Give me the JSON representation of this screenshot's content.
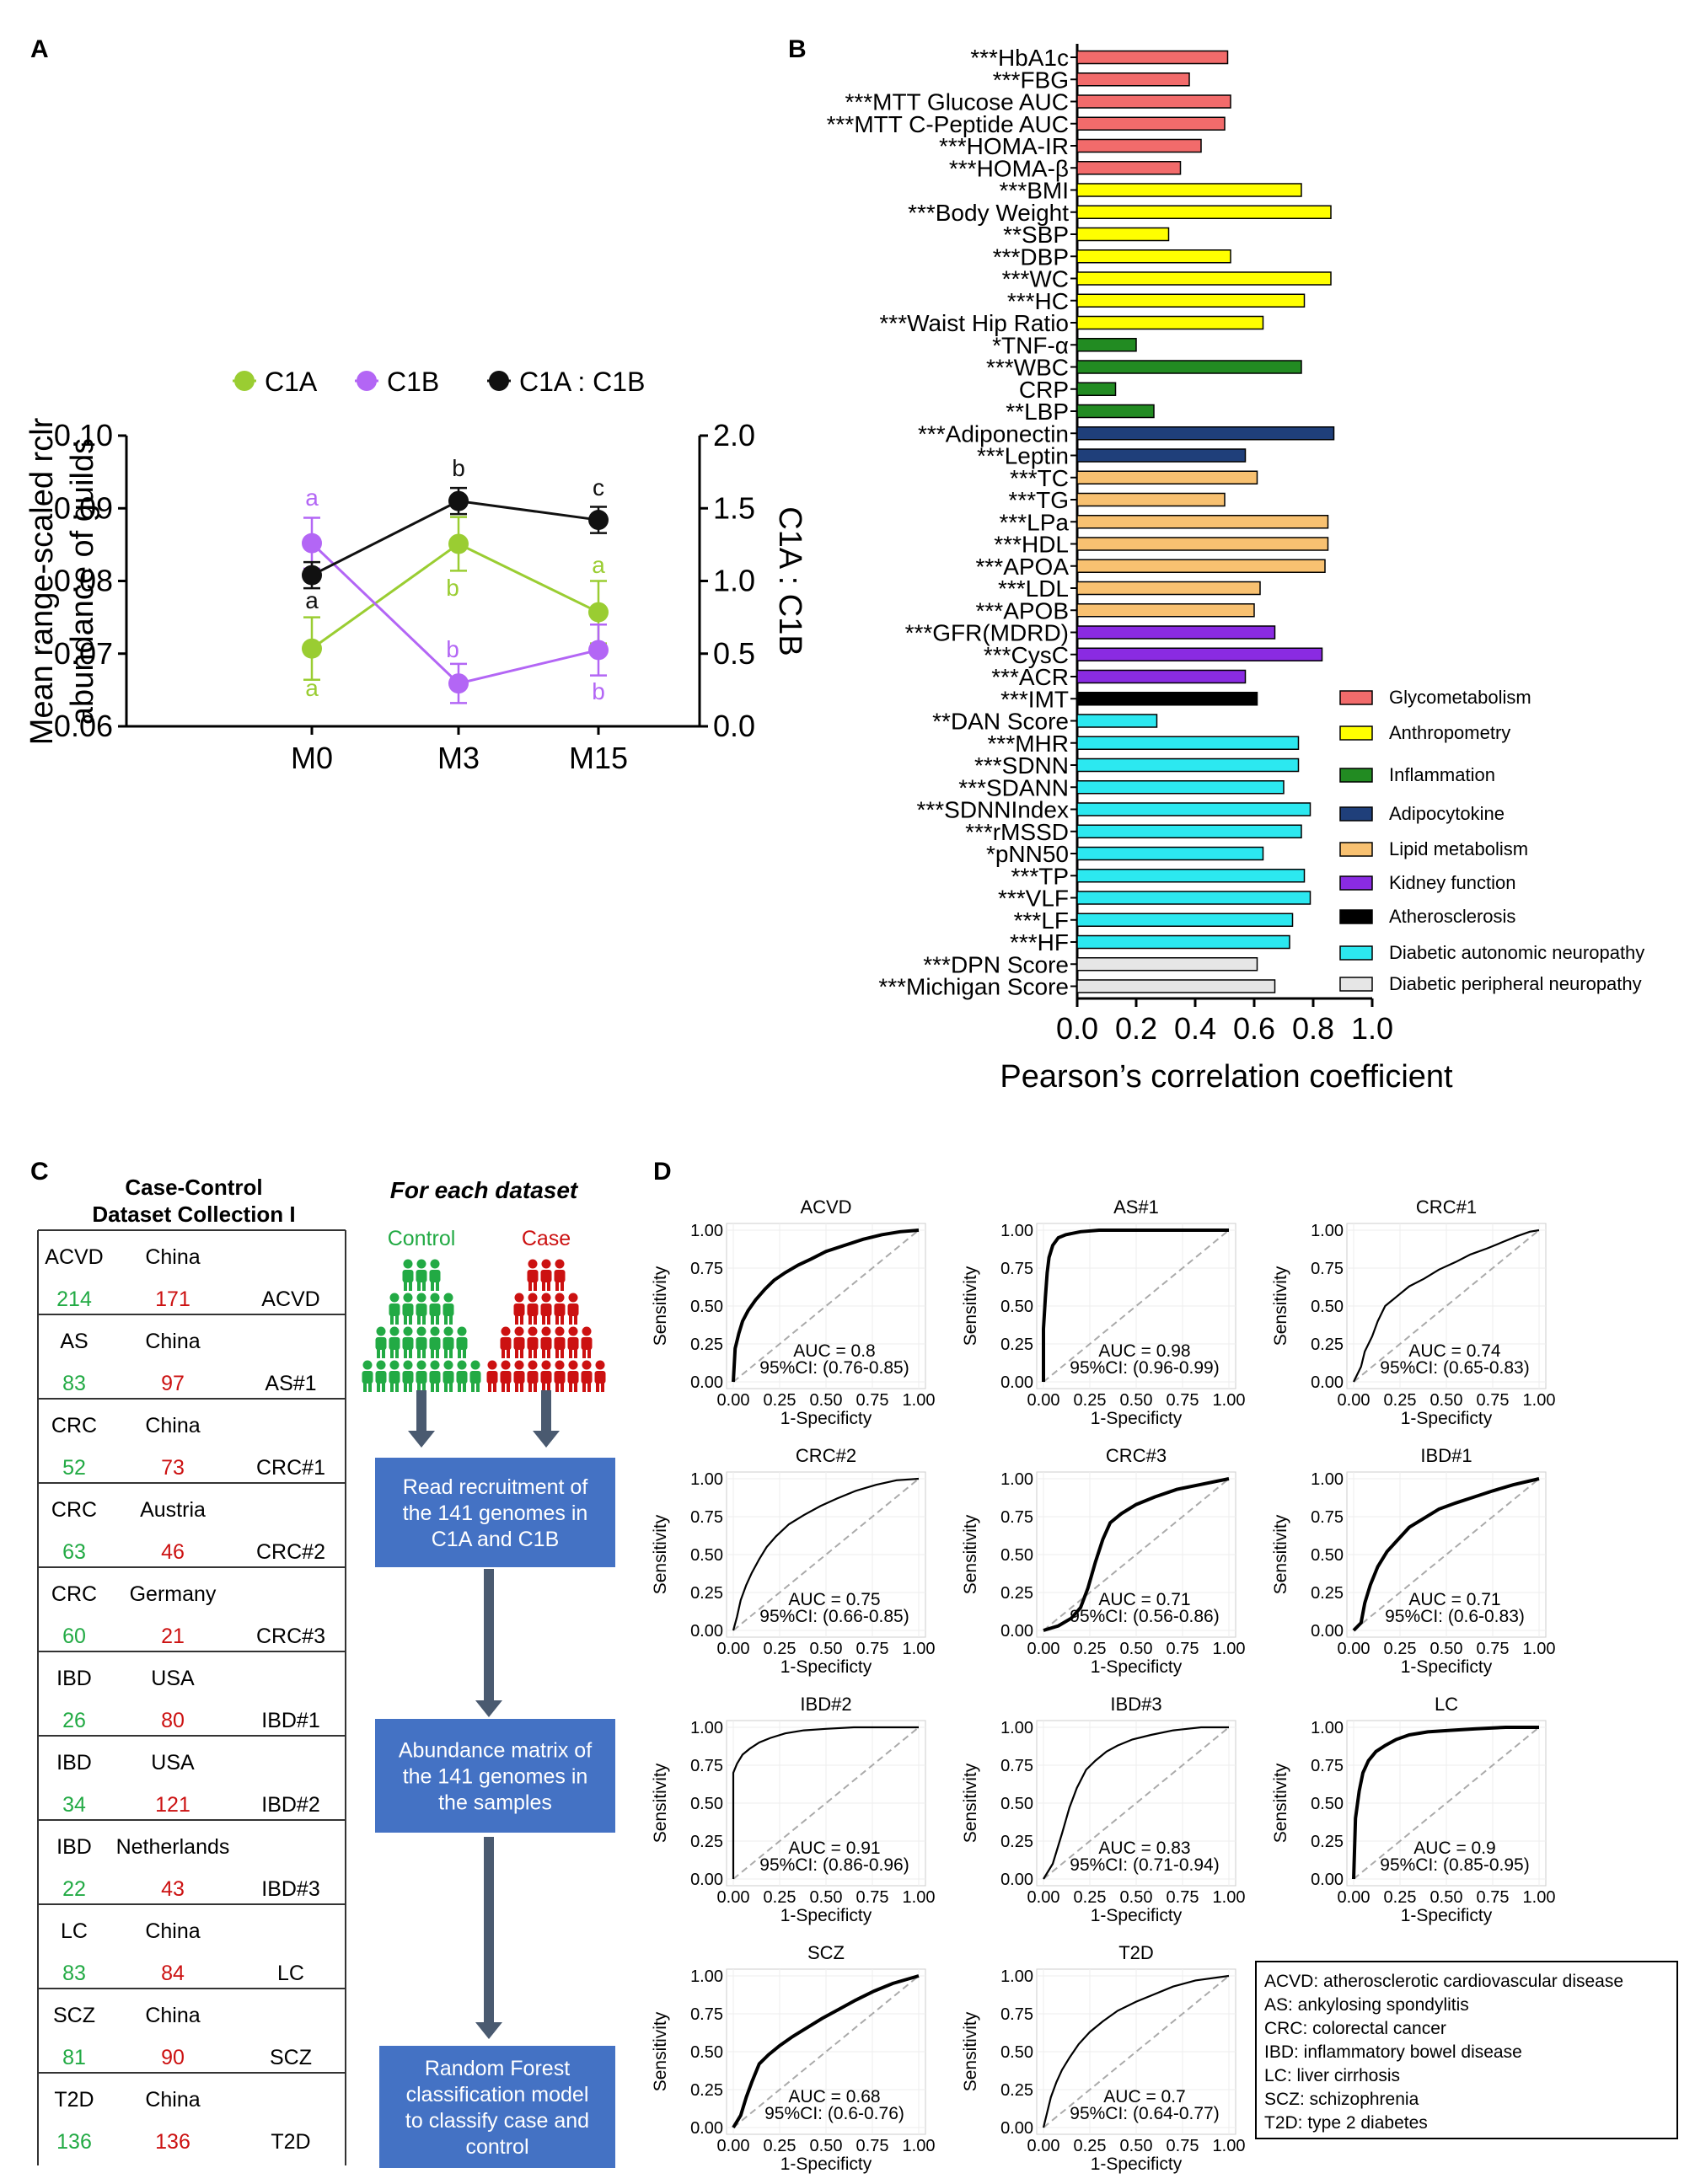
{
  "colors": {
    "c1a": "#9acd32",
    "c1b": "#b366f5",
    "ratio": "#111111",
    "control": "#22aa44",
    "case": "#cc1111",
    "flowbox": "#4472c4",
    "arrow": "#4a5a70",
    "diag": "#aaaaaa"
  },
  "panelA": {
    "panel_label": "A",
    "legend": [
      "C1A",
      "C1B",
      "C1A : C1B"
    ],
    "ylabel_line1": "Mean range-scaled rclr",
    "ylabel_line2": "abundance of guilds",
    "y2label": "C1A : C1B",
    "yticks": [
      "0.06",
      "0.07",
      "0.08",
      "0.09",
      "0.10"
    ],
    "y2ticks": [
      "0.0",
      "0.5",
      "1.0",
      "1.5",
      "2.0"
    ],
    "letters": {
      "c1a": [
        "a",
        "b",
        "a"
      ],
      "c1b": [
        "a",
        "b",
        "b"
      ],
      "ratio": [
        "a",
        "b",
        "c"
      ]
    }
  },
  "panelB": {
    "panel_label": "B",
    "xlabel": "Pearson’s correlation coefficient",
    "xticks": [
      "0.0",
      "0.2",
      "0.4",
      "0.6",
      "0.8",
      "1.0"
    ],
    "categories": [
      {
        "name": "Glycometabolism",
        "color": "#f26b6b"
      },
      {
        "name": "Anthropometry",
        "color": "#ffff00"
      },
      {
        "name": "Inflammation",
        "color": "#228b22"
      },
      {
        "name": "Adipocytokine",
        "color": "#1f3f7a"
      },
      {
        "name": "Lipid metabolism",
        "color": "#f8c171"
      },
      {
        "name": "Kidney function",
        "color": "#8a2be2"
      },
      {
        "name": "Atherosclerosis",
        "color": "#000000"
      },
      {
        "name": "Diabetic autonomic neuropathy",
        "color": "#2ce8f0"
      },
      {
        "name": "Diabetic peripheral neuropathy",
        "color": "#e6e6e6"
      }
    ]
  },
  "panelC": {
    "panel_label": "C",
    "title_line1": "Case-Control",
    "title_line2": "Dataset Collection I",
    "flow_title": "For each dataset",
    "control_label": "Control",
    "case_label": "Case",
    "rows": [
      {
        "disease": "ACVD",
        "country": "China",
        "control": "214",
        "case": "171",
        "dataset": "ACVD"
      },
      {
        "disease": "AS",
        "country": "China",
        "control": "83",
        "case": "97",
        "dataset": "AS#1"
      },
      {
        "disease": "CRC",
        "country": "China",
        "control": "52",
        "case": "73",
        "dataset": "CRC#1"
      },
      {
        "disease": "CRC",
        "country": "Austria",
        "control": "63",
        "case": "46",
        "dataset": "CRC#2"
      },
      {
        "disease": "CRC",
        "country": "Germany",
        "control": "60",
        "case": "21",
        "dataset": "CRC#3"
      },
      {
        "disease": "IBD",
        "country": "USA",
        "control": "26",
        "case": "80",
        "dataset": "IBD#1"
      },
      {
        "disease": "IBD",
        "country": "USA",
        "control": "34",
        "case": "121",
        "dataset": "IBD#2"
      },
      {
        "disease": "IBD",
        "country": "Netherlands",
        "control": "22",
        "case": "43",
        "dataset": "IBD#3"
      },
      {
        "disease": "LC",
        "country": "China",
        "control": "83",
        "case": "84",
        "dataset": "LC"
      },
      {
        "disease": "SCZ",
        "country": "China",
        "control": "81",
        "case": "90",
        "dataset": "SCZ"
      },
      {
        "disease": "T2D",
        "country": "China",
        "control": "136",
        "case": "136",
        "dataset": "T2D"
      }
    ],
    "flow_boxes": [
      [
        "Read recruitment of",
        "the 141 genomes in",
        "C1A and C1B"
      ],
      [
        "Abundance matrix of",
        "the 141 genomes in",
        "the samples"
      ],
      [
        "Random Forest",
        "classification model",
        "to classify case and",
        "control"
      ]
    ]
  },
  "panelD": {
    "panel_label": "D",
    "xlabel": "1-Specificty",
    "ylabel": "Sensitivity",
    "ticks": [
      "0.00",
      "0.25",
      "0.50",
      "0.75",
      "1.00"
    ],
    "abbreviations": [
      "ACVD: atherosclerotic cardiovascular disease",
      "AS: ankylosing spondylitis",
      "CRC: colorectal cancer",
      "IBD: inflammatory bowel disease",
      "LC: liver cirrhosis",
      "SCZ: schizophrenia",
      "T2D: type 2 diabetes"
    ]
  },
  "chart_data": [
    {
      "type": "line",
      "panel": "A",
      "categories": [
        "M0",
        "M3",
        "M15"
      ],
      "ylim": [
        0.06,
        0.1
      ],
      "y2lim": [
        0.0,
        2.0
      ],
      "series": [
        {
          "name": "C1A",
          "axis": "left",
          "values": [
            0.0707,
            0.0851,
            0.0757
          ],
          "err": [
            0.0043,
            0.0037,
            0.0043
          ]
        },
        {
          "name": "C1B",
          "axis": "left",
          "values": [
            0.0852,
            0.0659,
            0.0705
          ],
          "err": [
            0.0035,
            0.0027,
            0.0035
          ]
        },
        {
          "name": "C1A : C1B",
          "axis": "right",
          "values": [
            1.04,
            1.55,
            1.42
          ],
          "err": [
            0.09,
            0.09,
            0.09
          ]
        }
      ]
    },
    {
      "type": "bar",
      "panel": "B",
      "orientation": "horizontal",
      "xlim": [
        0.0,
        1.0
      ],
      "xlabel": "Pearson’s correlation coefficient",
      "bars": [
        {
          "label": "***HbA1c",
          "value": 0.51,
          "cat": 0
        },
        {
          "label": "***FBG",
          "value": 0.38,
          "cat": 0
        },
        {
          "label": "***MTT Glucose AUC",
          "value": 0.52,
          "cat": 0
        },
        {
          "label": "***MTT C-Peptide AUC",
          "value": 0.5,
          "cat": 0
        },
        {
          "label": "***HOMA-IR",
          "value": 0.42,
          "cat": 0
        },
        {
          "label": "***HOMA-β",
          "value": 0.35,
          "cat": 0
        },
        {
          "label": "***BMI",
          "value": 0.76,
          "cat": 1
        },
        {
          "label": "***Body Weight",
          "value": 0.86,
          "cat": 1
        },
        {
          "label": "**SBP",
          "value": 0.31,
          "cat": 1
        },
        {
          "label": "***DBP",
          "value": 0.52,
          "cat": 1
        },
        {
          "label": "***WC",
          "value": 0.86,
          "cat": 1
        },
        {
          "label": "***HC",
          "value": 0.77,
          "cat": 1
        },
        {
          "label": "***Waist Hip Ratio",
          "value": 0.63,
          "cat": 1
        },
        {
          "label": "*TNF-α",
          "value": 0.2,
          "cat": 2
        },
        {
          "label": "***WBC",
          "value": 0.76,
          "cat": 2
        },
        {
          "label": "CRP",
          "value": 0.13,
          "cat": 2
        },
        {
          "label": "**LBP",
          "value": 0.26,
          "cat": 2
        },
        {
          "label": "***Adiponectin",
          "value": 0.87,
          "cat": 3
        },
        {
          "label": "***Leptin",
          "value": 0.57,
          "cat": 3
        },
        {
          "label": "***TC",
          "value": 0.61,
          "cat": 4
        },
        {
          "label": "***TG",
          "value": 0.5,
          "cat": 4
        },
        {
          "label": "***LPa",
          "value": 0.85,
          "cat": 4
        },
        {
          "label": "***HDL",
          "value": 0.85,
          "cat": 4
        },
        {
          "label": "***APOA",
          "value": 0.84,
          "cat": 4
        },
        {
          "label": "***LDL",
          "value": 0.62,
          "cat": 4
        },
        {
          "label": "***APOB",
          "value": 0.6,
          "cat": 4
        },
        {
          "label": "***GFR(MDRD)",
          "value": 0.67,
          "cat": 5
        },
        {
          "label": "***CysC",
          "value": 0.83,
          "cat": 5
        },
        {
          "label": "***ACR",
          "value": 0.57,
          "cat": 5
        },
        {
          "label": "***IMT",
          "value": 0.61,
          "cat": 6
        },
        {
          "label": "**DAN Score",
          "value": 0.27,
          "cat": 7
        },
        {
          "label": "***MHR",
          "value": 0.75,
          "cat": 7
        },
        {
          "label": "***SDNN",
          "value": 0.75,
          "cat": 7
        },
        {
          "label": "***SDANN",
          "value": 0.7,
          "cat": 7
        },
        {
          "label": "***SDNNIndex",
          "value": 0.79,
          "cat": 7
        },
        {
          "label": "***rMSSD",
          "value": 0.76,
          "cat": 7
        },
        {
          "label": "*pNN50",
          "value": 0.63,
          "cat": 7
        },
        {
          "label": "***TP",
          "value": 0.77,
          "cat": 7
        },
        {
          "label": "***VLF",
          "value": 0.79,
          "cat": 7
        },
        {
          "label": "***LF",
          "value": 0.73,
          "cat": 7
        },
        {
          "label": "***HF",
          "value": 0.72,
          "cat": 7
        },
        {
          "label": "***DPN Score",
          "value": 0.61,
          "cat": 8
        },
        {
          "label": "***Michigan Score",
          "value": 0.67,
          "cat": 8
        }
      ]
    },
    {
      "type": "line",
      "panel": "D",
      "xlabel": "1-Specificty",
      "ylabel": "Sensitivity",
      "xlim": [
        0,
        1
      ],
      "ylim": [
        0,
        1
      ],
      "rocs": [
        {
          "title": "ACVD",
          "auc": "AUC  = 0.8",
          "ci": "95%CI: (0.76-0.85)",
          "thick": true,
          "fpr": [
            0,
            0.01,
            0.03,
            0.05,
            0.08,
            0.12,
            0.17,
            0.22,
            0.28,
            0.35,
            0.42,
            0.5,
            0.6,
            0.7,
            0.8,
            0.9,
            1
          ],
          "tpr": [
            0,
            0.22,
            0.32,
            0.4,
            0.47,
            0.54,
            0.61,
            0.67,
            0.72,
            0.77,
            0.81,
            0.86,
            0.9,
            0.94,
            0.97,
            0.99,
            1
          ]
        },
        {
          "title": "AS#1",
          "auc": "AUC  = 0.98",
          "ci": "95%CI: (0.96-0.99)",
          "thick": true,
          "fpr": [
            0,
            0,
            0.01,
            0.02,
            0.03,
            0.05,
            0.08,
            0.12,
            0.2,
            0.3,
            0.5,
            1
          ],
          "tpr": [
            0,
            0.35,
            0.55,
            0.72,
            0.82,
            0.9,
            0.95,
            0.97,
            0.99,
            1,
            1,
            1
          ]
        },
        {
          "title": "CRC#1",
          "auc": "AUC  = 0.74",
          "ci": "95%CI: (0.65-0.83)",
          "thick": false,
          "fpr": [
            0,
            0.04,
            0.06,
            0.1,
            0.13,
            0.17,
            0.23,
            0.3,
            0.38,
            0.46,
            0.55,
            0.63,
            0.72,
            0.8,
            0.88,
            0.95,
            1
          ],
          "tpr": [
            0,
            0.1,
            0.2,
            0.3,
            0.4,
            0.5,
            0.56,
            0.63,
            0.68,
            0.74,
            0.79,
            0.84,
            0.88,
            0.92,
            0.96,
            0.99,
            1
          ]
        },
        {
          "title": "CRC#2",
          "auc": "AUC  = 0.75",
          "ci": "95%CI: (0.66-0.85)",
          "thick": false,
          "fpr": [
            0,
            0.02,
            0.04,
            0.07,
            0.1,
            0.14,
            0.18,
            0.23,
            0.3,
            0.38,
            0.47,
            0.56,
            0.66,
            0.77,
            0.88,
            1
          ],
          "tpr": [
            0,
            0.09,
            0.2,
            0.3,
            0.38,
            0.47,
            0.55,
            0.62,
            0.7,
            0.76,
            0.82,
            0.87,
            0.92,
            0.96,
            0.99,
            1
          ]
        },
        {
          "title": "CRC#3",
          "auc": "AUC  = 0.71",
          "ci": "95%CI: (0.56-0.86)",
          "thick": true,
          "fpr": [
            0,
            0.08,
            0.15,
            0.2,
            0.24,
            0.28,
            0.32,
            0.36,
            0.42,
            0.5,
            0.6,
            0.72,
            0.84,
            1
          ],
          "tpr": [
            0,
            0.03,
            0.08,
            0.15,
            0.28,
            0.45,
            0.6,
            0.71,
            0.77,
            0.83,
            0.88,
            0.93,
            0.96,
            1
          ]
        },
        {
          "title": "IBD#1",
          "auc": "AUC  = 0.71",
          "ci": "95%CI: (0.6-0.83)",
          "thick": true,
          "fpr": [
            0,
            0.04,
            0.06,
            0.09,
            0.13,
            0.18,
            0.24,
            0.3,
            0.38,
            0.46,
            0.55,
            0.65,
            0.75,
            0.86,
            1
          ],
          "tpr": [
            0,
            0.05,
            0.18,
            0.3,
            0.42,
            0.52,
            0.6,
            0.68,
            0.74,
            0.8,
            0.84,
            0.88,
            0.92,
            0.96,
            1
          ]
        },
        {
          "title": "IBD#2",
          "auc": "AUC  = 0.91",
          "ci": "95%CI: (0.86-0.96)",
          "thick": false,
          "fpr": [
            0,
            0,
            0.02,
            0.05,
            0.09,
            0.14,
            0.2,
            0.28,
            0.38,
            0.5,
            0.65,
            0.82,
            1
          ],
          "tpr": [
            0,
            0.7,
            0.76,
            0.82,
            0.86,
            0.9,
            0.93,
            0.96,
            0.98,
            0.99,
            1,
            1,
            1
          ]
        },
        {
          "title": "IBD#3",
          "auc": "AUC  = 0.83",
          "ci": "95%CI: (0.71-0.94)",
          "thick": false,
          "fpr": [
            0,
            0.05,
            0.1,
            0.14,
            0.18,
            0.23,
            0.28,
            0.34,
            0.4,
            0.48,
            0.58,
            0.7,
            0.85,
            1
          ],
          "tpr": [
            0,
            0.1,
            0.3,
            0.47,
            0.6,
            0.72,
            0.78,
            0.84,
            0.88,
            0.92,
            0.95,
            0.98,
            1,
            1
          ]
        },
        {
          "title": "LC",
          "auc": "AUC  = 0.9",
          "ci": "95%CI: (0.85-0.95)",
          "thick": true,
          "fpr": [
            0,
            0.01,
            0.03,
            0.05,
            0.08,
            0.12,
            0.17,
            0.23,
            0.3,
            0.4,
            0.52,
            0.66,
            0.82,
            1
          ],
          "tpr": [
            0,
            0.4,
            0.58,
            0.7,
            0.78,
            0.84,
            0.88,
            0.92,
            0.95,
            0.97,
            0.98,
            0.99,
            1,
            1
          ]
        },
        {
          "title": "SCZ",
          "auc": "AUC  = 0.68",
          "ci": "95%CI: (0.6-0.76)",
          "thick": true,
          "fpr": [
            0,
            0.04,
            0.07,
            0.1,
            0.14,
            0.19,
            0.25,
            0.32,
            0.4,
            0.48,
            0.57,
            0.66,
            0.76,
            0.86,
            1
          ],
          "tpr": [
            0,
            0.08,
            0.2,
            0.3,
            0.42,
            0.48,
            0.54,
            0.6,
            0.66,
            0.72,
            0.78,
            0.84,
            0.9,
            0.95,
            1
          ]
        },
        {
          "title": "T2D",
          "auc": "AUC  = 0.7",
          "ci": "95%CI: (0.64-0.77)",
          "thick": false,
          "fpr": [
            0,
            0.02,
            0.04,
            0.07,
            0.1,
            0.14,
            0.19,
            0.25,
            0.32,
            0.4,
            0.5,
            0.6,
            0.7,
            0.82,
            1
          ],
          "tpr": [
            0,
            0.1,
            0.2,
            0.3,
            0.38,
            0.46,
            0.55,
            0.63,
            0.7,
            0.77,
            0.83,
            0.88,
            0.93,
            0.97,
            1
          ]
        }
      ]
    }
  ]
}
